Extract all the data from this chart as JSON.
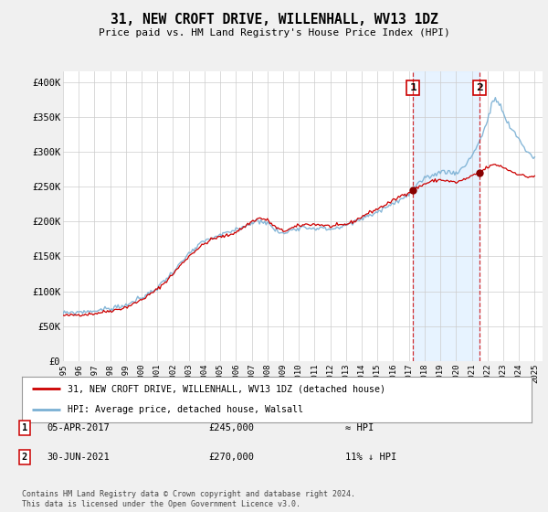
{
  "title": "31, NEW CROFT DRIVE, WILLENHALL, WV13 1DZ",
  "subtitle": "Price paid vs. HM Land Registry's House Price Index (HPI)",
  "ylabel_ticks": [
    "£0",
    "£50K",
    "£100K",
    "£150K",
    "£200K",
    "£250K",
    "£300K",
    "£350K",
    "£400K"
  ],
  "ytick_values": [
    0,
    50000,
    100000,
    150000,
    200000,
    250000,
    300000,
    350000,
    400000
  ],
  "ylim": [
    0,
    415000
  ],
  "xlim_start": 1995.0,
  "xlim_end": 2025.5,
  "hpi_color": "#7ab0d4",
  "price_color": "#cc0000",
  "marker1_date": 2017.27,
  "marker1_price": 245000,
  "marker2_date": 2021.5,
  "marker2_price": 270000,
  "marker1_label": "05-APR-2017",
  "marker1_amount": "£245,000",
  "marker1_relation": "≈ HPI",
  "marker2_label": "30-JUN-2021",
  "marker2_amount": "£270,000",
  "marker2_relation": "11% ↓ HPI",
  "legend_line1": "31, NEW CROFT DRIVE, WILLENHALL, WV13 1DZ (detached house)",
  "legend_line2": "HPI: Average price, detached house, Walsall",
  "footer": "Contains HM Land Registry data © Crown copyright and database right 2024.\nThis data is licensed under the Open Government Licence v3.0.",
  "background_color": "#f0f0f0",
  "plot_bg_color": "#ffffff",
  "xtick_years": [
    1995,
    1996,
    1997,
    1998,
    1999,
    2000,
    2001,
    2002,
    2003,
    2004,
    2005,
    2006,
    2007,
    2008,
    2009,
    2010,
    2011,
    2012,
    2013,
    2014,
    2015,
    2016,
    2017,
    2018,
    2019,
    2020,
    2021,
    2022,
    2023,
    2024,
    2025
  ]
}
